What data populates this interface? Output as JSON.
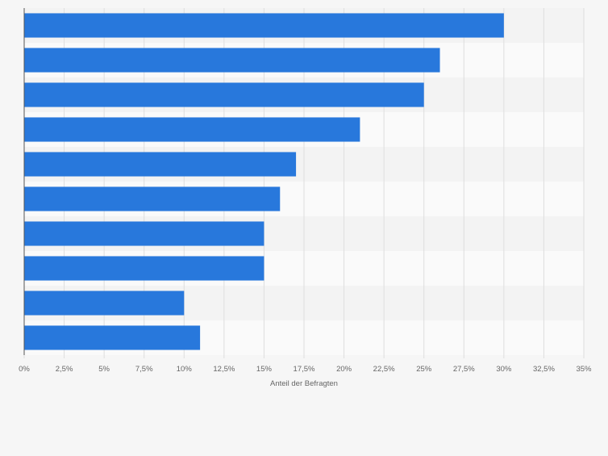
{
  "chart_data": {
    "type": "bar",
    "orientation": "horizontal",
    "categories": [
      "",
      "",
      "",
      "",
      "",
      "",
      "",
      "",
      "",
      ""
    ],
    "values": [
      30,
      26,
      25,
      21,
      17,
      16,
      15,
      15,
      10,
      11
    ],
    "xlabel": "Anteil der Befragten",
    "xlim": [
      0,
      35
    ],
    "ticks": [
      0,
      2.5,
      5,
      7.5,
      10,
      12.5,
      15,
      17.5,
      20,
      22.5,
      25,
      27.5,
      30,
      32.5,
      35
    ],
    "tick_labels": [
      "0%",
      "2,5%",
      "5%",
      "7,5%",
      "10%",
      "12,5%",
      "15%",
      "17,5%",
      "20%",
      "22,5%",
      "25%",
      "27,5%",
      "30%",
      "32,5%",
      "35%"
    ],
    "grid": true,
    "legend": "none",
    "colors": {
      "bar": "#2878dc",
      "band_a": "#f3f3f3",
      "band_b": "#fafafa",
      "grid": "#dedede",
      "axis": "#555555",
      "text": "#666666"
    }
  }
}
